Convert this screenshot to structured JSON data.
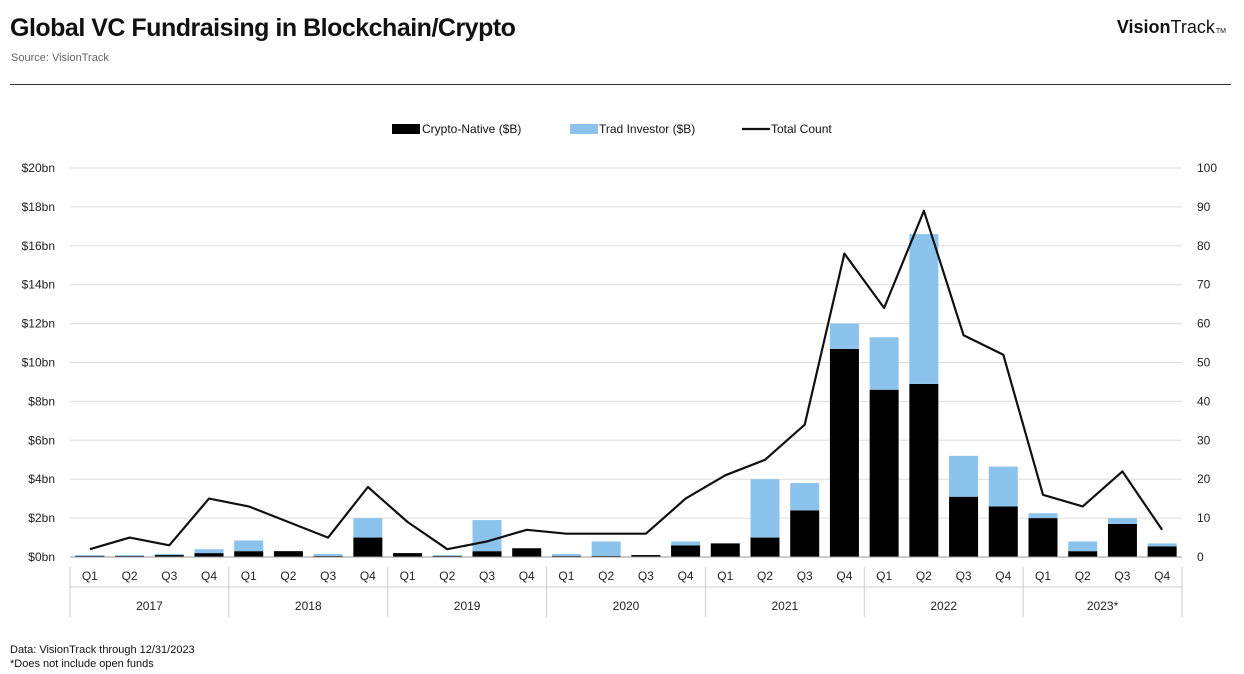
{
  "header": {
    "title": "Global VC Fundraising in Blockchain/Crypto",
    "source": "Source: VisionTrack",
    "brand_bold": "Vision",
    "brand_light": "Track",
    "brand_mark": "TM"
  },
  "footer": {
    "note1": "Data: VisionTrack through 12/31/2023",
    "note2": "*Does not include open funds"
  },
  "colors": {
    "crypto": "#000000",
    "trad": "#8cc3ec",
    "line": "#111111",
    "grid": "#dddddd"
  },
  "chart_data": {
    "type": "bar",
    "stacked": true,
    "title": "Global VC Fundraising in Blockchain/Crypto",
    "legend": [
      "Crypto-Native ($B)",
      "Trad Investor ($B)",
      "Total Count"
    ],
    "legend_position": "top-center",
    "categories": [
      "Q1",
      "Q2",
      "Q3",
      "Q4",
      "Q1",
      "Q2",
      "Q3",
      "Q4",
      "Q1",
      "Q2",
      "Q3",
      "Q4",
      "Q1",
      "Q2",
      "Q3",
      "Q4",
      "Q1",
      "Q2",
      "Q3",
      "Q4",
      "Q1",
      "Q2",
      "Q3",
      "Q4",
      "Q1",
      "Q2",
      "Q3",
      "Q4"
    ],
    "years": [
      "2017",
      "2018",
      "2019",
      "2020",
      "2021",
      "2022",
      "2023*"
    ],
    "series": [
      {
        "name": "Crypto-Native ($B)",
        "axis": "left",
        "values": [
          0.05,
          0.05,
          0.1,
          0.2,
          0.3,
          0.3,
          0.05,
          1.0,
          0.2,
          0.05,
          0.3,
          0.45,
          0.05,
          0.05,
          0.1,
          0.6,
          0.7,
          1.0,
          2.4,
          10.7,
          8.6,
          8.9,
          3.1,
          2.6,
          2.0,
          0.3,
          1.7,
          0.55
        ]
      },
      {
        "name": "Trad Investor ($B)",
        "axis": "left",
        "values": [
          0.05,
          0.05,
          0.05,
          0.2,
          0.55,
          0.0,
          0.1,
          1.0,
          0.0,
          0.05,
          1.6,
          0.0,
          0.1,
          0.75,
          0.0,
          0.2,
          0.0,
          3.0,
          1.4,
          1.3,
          2.7,
          7.7,
          2.1,
          2.05,
          0.25,
          0.5,
          0.3,
          0.15
        ]
      },
      {
        "name": "Total Count",
        "axis": "right",
        "type": "line",
        "values": [
          2,
          5,
          3,
          15,
          13,
          9,
          5,
          18,
          9,
          2,
          4,
          7,
          6,
          6,
          6,
          15,
          21,
          25,
          34,
          78,
          64,
          89,
          57,
          52,
          16,
          13,
          22,
          7
        ]
      }
    ],
    "y_left": {
      "min": 0,
      "max": 20,
      "ticks": [
        "$0bn",
        "$2bn",
        "$4bn",
        "$6bn",
        "$8bn",
        "$10bn",
        "$12bn",
        "$14bn",
        "$16bn",
        "$18bn",
        "$20bn"
      ]
    },
    "y_right": {
      "min": 0,
      "max": 100,
      "ticks": [
        "0",
        "10",
        "20",
        "30",
        "40",
        "50",
        "60",
        "70",
        "80",
        "90",
        "100"
      ]
    },
    "grid": true
  }
}
